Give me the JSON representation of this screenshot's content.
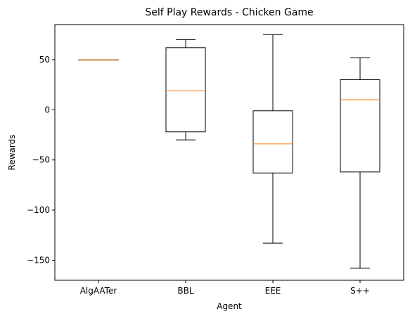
{
  "chart_data": {
    "type": "box",
    "title": "Self Play Rewards - Chicken Game",
    "xlabel": "Agent",
    "ylabel": "Rewards",
    "ylim": [
      -170,
      85
    ],
    "yticks": [
      50,
      0,
      -50,
      -100,
      -150
    ],
    "ytick_labels": [
      "50",
      "0",
      "−50",
      "−100",
      "−150"
    ],
    "grid": false,
    "categories": [
      "AlgAATer",
      "BBL",
      "EEE",
      "S++"
    ],
    "boxes": [
      {
        "label": "AlgAATer",
        "whisker_low": 50,
        "q1": 50,
        "median": 50,
        "q3": 50,
        "whisker_high": 50
      },
      {
        "label": "BBL",
        "whisker_low": -30,
        "q1": -22,
        "median": 19,
        "q3": 62,
        "whisker_high": 70
      },
      {
        "label": "EEE",
        "whisker_low": -133,
        "q1": -63,
        "median": -34,
        "q3": -1,
        "whisker_high": 75
      },
      {
        "label": "S++",
        "whisker_low": -158,
        "q1": -62,
        "median": 10,
        "q3": 30,
        "whisker_high": 52
      }
    ],
    "colors": {
      "box": "#000000",
      "median": "#ff7f0e"
    }
  }
}
